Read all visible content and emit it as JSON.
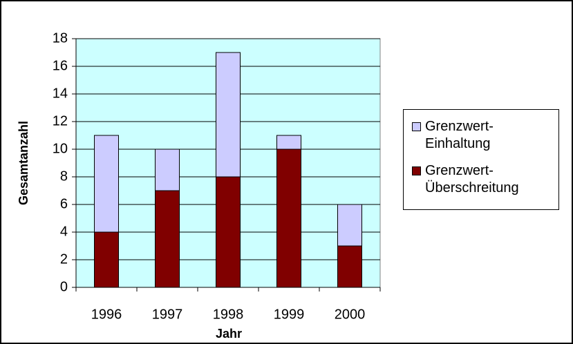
{
  "chart_data": {
    "type": "stacked_bar",
    "xlabel": "Jahr",
    "ylabel": "Gesamtanzahl",
    "categories": [
      "1996",
      "1997",
      "1998",
      "1999",
      "2000"
    ],
    "series": [
      {
        "name": "Grenzwert-Einhaltung",
        "color": "#ccccff",
        "values": [
          7,
          3,
          9,
          1,
          3
        ]
      },
      {
        "name": "Grenzwert-Überschreitung",
        "color": "#800000",
        "values": [
          4,
          7,
          8,
          10,
          3
        ]
      }
    ],
    "ylim": [
      0,
      18
    ],
    "yticks": [
      0,
      2,
      4,
      6,
      8,
      10,
      12,
      14,
      16,
      18
    ],
    "grid": true,
    "legend": "right"
  }
}
